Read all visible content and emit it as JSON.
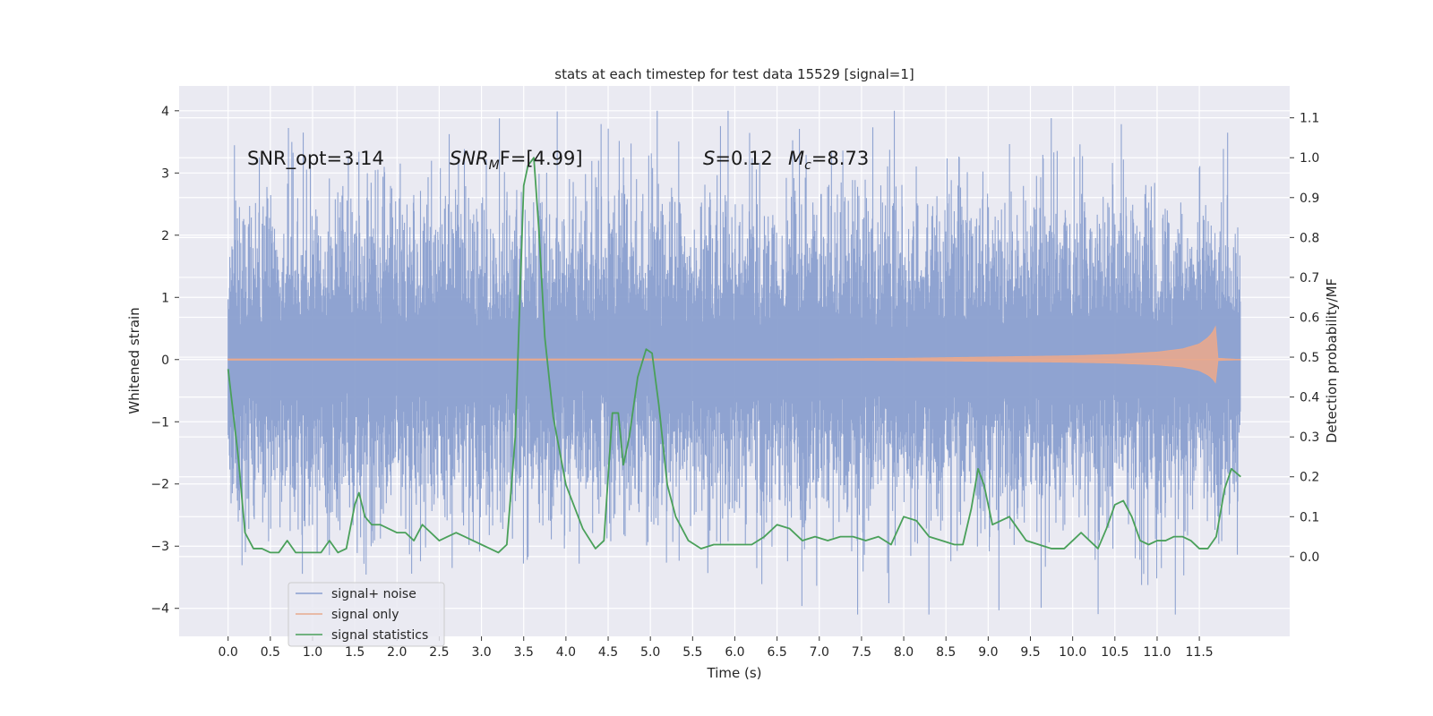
{
  "chart_data": {
    "type": "line",
    "title": "stats at each timestep for test data 15529 [signal=1]",
    "xlabel": "Time (s)",
    "ylabel": "Whitened strain",
    "ylabel_right": "Detection probability/MF",
    "xlim": [
      -0.58,
      12.57
    ],
    "ylim": [
      -4.45,
      4.4
    ],
    "ylim_right": [
      -0.2,
      1.18
    ],
    "x_ticks": [
      0.0,
      0.5,
      1.0,
      1.5,
      2.0,
      2.5,
      3.0,
      3.5,
      4.0,
      4.5,
      5.0,
      5.5,
      6.0,
      6.5,
      7.0,
      7.5,
      8.0,
      8.5,
      9.0,
      9.5,
      10.0,
      10.5,
      11.0,
      11.5
    ],
    "x_tick_labels": [
      "0.0",
      "0.5",
      "1.0",
      "1.5",
      "2.0",
      "2.5",
      "3.0",
      "3.5",
      "4.0",
      "4.5",
      "5.0",
      "5.5",
      "6.0",
      "6.5",
      "7.0",
      "7.5",
      "8.0",
      "8.5",
      "9.0",
      "9.5",
      "10.0",
      "10.5",
      "11.0",
      "11.5"
    ],
    "y_ticks": [
      -4,
      -3,
      -2,
      -1,
      0,
      1,
      2,
      3,
      4
    ],
    "y_tick_labels": [
      "−4",
      "−3",
      "−2",
      "−1",
      "0",
      "1",
      "2",
      "3",
      "4"
    ],
    "y_ticks_right": [
      0.0,
      0.1,
      0.2,
      0.3,
      0.4,
      0.5,
      0.6,
      0.7,
      0.8,
      0.9,
      1.0,
      1.1
    ],
    "y_tick_labels_right": [
      "0.0",
      "0.1",
      "0.2",
      "0.3",
      "0.4",
      "0.5",
      "0.6",
      "0.7",
      "0.8",
      "0.9",
      "1.0",
      "1.1"
    ],
    "grid": true,
    "legend_position": "lower-left",
    "legend": [
      {
        "label": "signal+ noise",
        "color": "#8a9fcf"
      },
      {
        "label": "signal only",
        "color": "#e8a98e"
      },
      {
        "label": "signal statistics",
        "color": "#4aa05a"
      }
    ],
    "noise_envelope": {
      "name": "signal+ noise",
      "color": "#8a9fcf",
      "time_range": [
        0.0,
        11.99
      ],
      "typical_range": [
        -1.3,
        1.3
      ],
      "extreme_range": [
        -4.1,
        4.0
      ]
    },
    "signal_only": {
      "name": "signal only",
      "color": "#e8a98e",
      "x": [
        0.0,
        7.0,
        8.0,
        9.0,
        10.0,
        10.5,
        11.0,
        11.3,
        11.5,
        11.6,
        11.65,
        11.7,
        11.72,
        11.99
      ],
      "amplitude": [
        0.01,
        0.01,
        0.02,
        0.04,
        0.06,
        0.08,
        0.12,
        0.17,
        0.25,
        0.35,
        0.42,
        0.55,
        0.02,
        0.0
      ]
    },
    "series": [
      {
        "name": "signal statistics",
        "color": "#4aa05a",
        "x": [
          0.0,
          0.12,
          0.2,
          0.3,
          0.4,
          0.5,
          0.6,
          0.7,
          0.8,
          0.9,
          1.0,
          1.1,
          1.2,
          1.3,
          1.4,
          1.5,
          1.55,
          1.62,
          1.7,
          1.8,
          1.9,
          2.0,
          2.1,
          2.2,
          2.3,
          2.4,
          2.5,
          2.6,
          2.7,
          2.8,
          2.9,
          3.0,
          3.1,
          3.2,
          3.3,
          3.4,
          3.5,
          3.55,
          3.62,
          3.68,
          3.75,
          3.85,
          4.0,
          4.2,
          4.35,
          4.45,
          4.55,
          4.62,
          4.68,
          4.75,
          4.85,
          4.95,
          5.02,
          5.1,
          5.2,
          5.3,
          5.45,
          5.6,
          5.75,
          5.9,
          6.05,
          6.2,
          6.35,
          6.5,
          6.65,
          6.8,
          6.95,
          7.1,
          7.25,
          7.4,
          7.55,
          7.7,
          7.85,
          8.0,
          8.15,
          8.3,
          8.45,
          8.6,
          8.7,
          8.8,
          8.88,
          8.95,
          9.05,
          9.15,
          9.25,
          9.35,
          9.45,
          9.6,
          9.75,
          9.9,
          10.0,
          10.1,
          10.2,
          10.3,
          10.4,
          10.5,
          10.6,
          10.7,
          10.8,
          10.9,
          11.0,
          11.1,
          11.2,
          11.3,
          11.4,
          11.5,
          11.6,
          11.7,
          11.8,
          11.88,
          11.99
        ],
        "values": [
          0.47,
          0.25,
          0.06,
          0.02,
          0.02,
          0.01,
          0.01,
          0.04,
          0.01,
          0.01,
          0.01,
          0.01,
          0.04,
          0.01,
          0.02,
          0.13,
          0.16,
          0.1,
          0.08,
          0.08,
          0.07,
          0.06,
          0.06,
          0.04,
          0.08,
          0.06,
          0.04,
          0.05,
          0.06,
          0.05,
          0.04,
          0.03,
          0.02,
          0.01,
          0.03,
          0.3,
          0.93,
          0.98,
          1.0,
          0.82,
          0.55,
          0.35,
          0.18,
          0.07,
          0.02,
          0.04,
          0.36,
          0.36,
          0.23,
          0.3,
          0.45,
          0.52,
          0.51,
          0.38,
          0.18,
          0.1,
          0.04,
          0.02,
          0.03,
          0.03,
          0.03,
          0.03,
          0.05,
          0.08,
          0.07,
          0.04,
          0.05,
          0.04,
          0.05,
          0.05,
          0.04,
          0.05,
          0.03,
          0.1,
          0.09,
          0.05,
          0.04,
          0.03,
          0.03,
          0.12,
          0.22,
          0.18,
          0.08,
          0.09,
          0.1,
          0.07,
          0.04,
          0.03,
          0.02,
          0.02,
          0.04,
          0.06,
          0.04,
          0.02,
          0.07,
          0.13,
          0.14,
          0.1,
          0.04,
          0.03,
          0.04,
          0.04,
          0.05,
          0.05,
          0.04,
          0.02,
          0.02,
          0.05,
          0.17,
          0.22,
          0.2
        ]
      }
    ],
    "annotations": [
      {
        "id": "snr-opt",
        "text": "SNR_opt=3.14"
      },
      {
        "id": "snr-mf-prefix",
        "text": "SNR"
      },
      {
        "id": "snr-mf-sub",
        "text": "M"
      },
      {
        "id": "snr-mf-rest",
        "text": "F=[4.99]"
      },
      {
        "id": "s-value-var",
        "text": "S"
      },
      {
        "id": "s-value-rest",
        "text": "=0.12"
      },
      {
        "id": "mc-var",
        "text": "M"
      },
      {
        "id": "mc-sub",
        "text": "c"
      },
      {
        "id": "mc-rest",
        "text": "=8.73"
      }
    ]
  }
}
